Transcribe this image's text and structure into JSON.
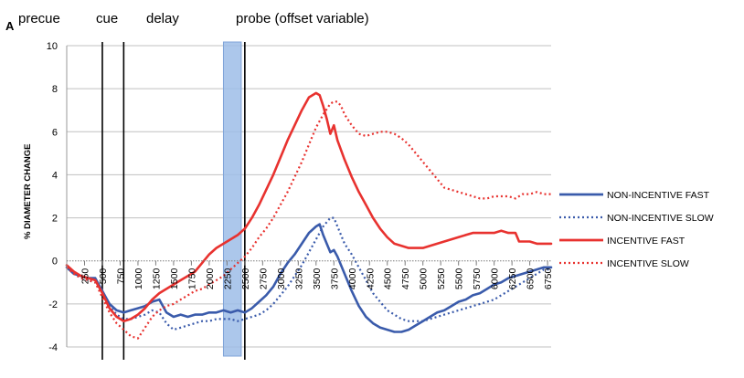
{
  "chart_data": {
    "type": "line",
    "panel_letter": "A",
    "phase_labels": [
      "precue",
      "cue",
      "delay",
      "probe (offset variable)"
    ],
    "ylabel": "% DIAMETER CHANGE",
    "xlabel": "",
    "ylim": [
      -4,
      10
    ],
    "y_ticks": [
      -4,
      -2,
      0,
      2,
      4,
      6,
      8,
      10
    ],
    "x_ticks": [
      250,
      500,
      750,
      1000,
      1250,
      1500,
      1750,
      2000,
      2250,
      2500,
      2750,
      3000,
      3250,
      3500,
      3750,
      4000,
      4250,
      4500,
      4750,
      5000,
      5250,
      5500,
      5750,
      6000,
      6250,
      6500,
      6750
    ],
    "xlim": [
      0,
      6800
    ],
    "grid": "horizontal",
    "legend_position": "right",
    "event_lines": [
      500,
      800,
      2500
    ],
    "probe_band": [
      2200,
      2450
    ],
    "colors": {
      "blue": "#3a5bab",
      "red": "#e8322f",
      "band": "#9dbde8",
      "grid": "#c0c0c0"
    },
    "series": [
      {
        "name": "NON-INCENTIVE FAST",
        "color": "#3a5bab",
        "style": "solid",
        "x": [
          0,
          100,
          200,
          300,
          400,
          500,
          600,
          700,
          800,
          900,
          1000,
          1100,
          1200,
          1300,
          1400,
          1500,
          1600,
          1700,
          1800,
          1900,
          2000,
          2100,
          2200,
          2300,
          2400,
          2500,
          2600,
          2700,
          2800,
          2900,
          3000,
          3100,
          3200,
          3300,
          3400,
          3500,
          3550,
          3600,
          3650,
          3700,
          3750,
          3800,
          3900,
          4000,
          4100,
          4200,
          4300,
          4400,
          4500,
          4600,
          4700,
          4800,
          4900,
          5000,
          5100,
          5200,
          5300,
          5400,
          5500,
          5600,
          5700,
          5800,
          5900,
          6000,
          6100,
          6200,
          6300,
          6400,
          6500,
          6600,
          6700,
          6800
        ],
        "y": [
          -0.3,
          -0.6,
          -0.7,
          -0.8,
          -0.8,
          -1.4,
          -2.0,
          -2.3,
          -2.4,
          -2.3,
          -2.2,
          -2.1,
          -1.9,
          -1.8,
          -2.4,
          -2.6,
          -2.5,
          -2.6,
          -2.5,
          -2.5,
          -2.4,
          -2.4,
          -2.3,
          -2.4,
          -2.3,
          -2.4,
          -2.2,
          -1.9,
          -1.6,
          -1.2,
          -0.6,
          -0.1,
          0.3,
          0.8,
          1.3,
          1.6,
          1.7,
          1.2,
          0.8,
          0.4,
          0.5,
          0.2,
          -0.6,
          -1.4,
          -2.1,
          -2.6,
          -2.9,
          -3.1,
          -3.2,
          -3.3,
          -3.3,
          -3.2,
          -3.0,
          -2.8,
          -2.6,
          -2.4,
          -2.3,
          -2.1,
          -1.9,
          -1.8,
          -1.6,
          -1.5,
          -1.3,
          -1.1,
          -1.0,
          -0.8,
          -0.7,
          -0.6,
          -0.5,
          -0.4,
          -0.3,
          -0.3
        ]
      },
      {
        "name": "NON-INCENTIVE SLOW",
        "color": "#3a5bab",
        "style": "dotted",
        "x": [
          0,
          100,
          200,
          300,
          400,
          500,
          600,
          700,
          800,
          900,
          1000,
          1100,
          1200,
          1300,
          1400,
          1500,
          1600,
          1700,
          1800,
          1900,
          2000,
          2100,
          2200,
          2300,
          2400,
          2500,
          2600,
          2700,
          2800,
          2900,
          3000,
          3100,
          3200,
          3300,
          3400,
          3500,
          3600,
          3700,
          3750,
          3800,
          3900,
          4000,
          4100,
          4200,
          4300,
          4400,
          4500,
          4600,
          4700,
          4800,
          4900,
          5000,
          5100,
          5200,
          5300,
          5400,
          5500,
          5600,
          5700,
          5800,
          5900,
          6000,
          6100,
          6200,
          6300,
          6400,
          6500,
          6600,
          6700,
          6800
        ],
        "y": [
          -0.3,
          -0.6,
          -0.8,
          -0.9,
          -1.0,
          -1.5,
          -2.1,
          -2.5,
          -2.7,
          -2.7,
          -2.6,
          -2.5,
          -2.3,
          -2.4,
          -2.9,
          -3.2,
          -3.1,
          -3.0,
          -2.9,
          -2.8,
          -2.8,
          -2.7,
          -2.7,
          -2.7,
          -2.8,
          -2.7,
          -2.6,
          -2.5,
          -2.3,
          -2.0,
          -1.6,
          -1.2,
          -0.7,
          -0.2,
          0.4,
          1.0,
          1.6,
          2.0,
          2.0,
          1.6,
          0.8,
          0.3,
          -0.3,
          -0.9,
          -1.5,
          -1.9,
          -2.3,
          -2.5,
          -2.7,
          -2.8,
          -2.8,
          -2.8,
          -2.7,
          -2.6,
          -2.5,
          -2.4,
          -2.3,
          -2.2,
          -2.1,
          -2.0,
          -1.9,
          -1.8,
          -1.6,
          -1.4,
          -1.2,
          -1.0,
          -0.8,
          -0.6,
          -0.4,
          -0.4
        ]
      },
      {
        "name": "INCENTIVE FAST",
        "color": "#e8322f",
        "style": "solid",
        "x": [
          0,
          100,
          200,
          300,
          400,
          500,
          600,
          700,
          800,
          900,
          1000,
          1100,
          1200,
          1300,
          1400,
          1500,
          1600,
          1700,
          1800,
          1900,
          2000,
          2100,
          2200,
          2300,
          2400,
          2500,
          2600,
          2700,
          2800,
          2900,
          3000,
          3100,
          3200,
          3300,
          3400,
          3500,
          3550,
          3600,
          3650,
          3700,
          3750,
          3800,
          3900,
          4000,
          4100,
          4200,
          4300,
          4400,
          4500,
          4600,
          4700,
          4800,
          4900,
          5000,
          5100,
          5200,
          5300,
          5400,
          5500,
          5600,
          5700,
          5800,
          5900,
          6000,
          6100,
          6200,
          6300,
          6350,
          6400,
          6500,
          6600,
          6700,
          6800
        ],
        "y": [
          -0.2,
          -0.5,
          -0.7,
          -0.8,
          -0.9,
          -1.5,
          -2.2,
          -2.6,
          -2.8,
          -2.7,
          -2.5,
          -2.2,
          -1.8,
          -1.5,
          -1.3,
          -1.1,
          -0.9,
          -0.7,
          -0.5,
          -0.1,
          0.3,
          0.6,
          0.8,
          1.0,
          1.2,
          1.5,
          2.0,
          2.6,
          3.3,
          4.0,
          4.8,
          5.6,
          6.3,
          7.0,
          7.6,
          7.8,
          7.7,
          7.2,
          6.6,
          5.9,
          6.3,
          5.6,
          4.7,
          3.9,
          3.2,
          2.6,
          2.0,
          1.5,
          1.1,
          0.8,
          0.7,
          0.6,
          0.6,
          0.6,
          0.7,
          0.8,
          0.9,
          1.0,
          1.1,
          1.2,
          1.3,
          1.3,
          1.3,
          1.3,
          1.4,
          1.3,
          1.3,
          0.9,
          0.9,
          0.9,
          0.8,
          0.8,
          0.8
        ]
      },
      {
        "name": "INCENTIVE SLOW",
        "color": "#e8322f",
        "style": "dotted",
        "x": [
          0,
          100,
          200,
          300,
          400,
          500,
          600,
          700,
          800,
          900,
          1000,
          1100,
          1200,
          1300,
          1400,
          1500,
          1600,
          1700,
          1800,
          1900,
          2000,
          2100,
          2200,
          2300,
          2400,
          2500,
          2600,
          2700,
          2800,
          2900,
          3000,
          3100,
          3200,
          3300,
          3400,
          3500,
          3600,
          3700,
          3750,
          3800,
          3850,
          3900,
          4000,
          4100,
          4200,
          4300,
          4400,
          4500,
          4600,
          4700,
          4800,
          4900,
          5000,
          5100,
          5200,
          5300,
          5400,
          5500,
          5600,
          5700,
          5800,
          5900,
          6000,
          6100,
          6200,
          6300,
          6400,
          6500,
          6600,
          6700,
          6800
        ],
        "y": [
          -0.3,
          -0.6,
          -0.8,
          -0.9,
          -1.0,
          -1.7,
          -2.4,
          -2.9,
          -3.2,
          -3.5,
          -3.6,
          -3.1,
          -2.6,
          -2.3,
          -2.1,
          -2.0,
          -1.8,
          -1.6,
          -1.4,
          -1.3,
          -1.1,
          -0.9,
          -0.7,
          -0.4,
          -0.1,
          0.2,
          0.6,
          1.1,
          1.5,
          2.0,
          2.6,
          3.2,
          3.9,
          4.6,
          5.4,
          6.2,
          6.8,
          7.3,
          7.4,
          7.4,
          7.2,
          6.8,
          6.3,
          5.9,
          5.8,
          5.9,
          6.0,
          6.0,
          5.9,
          5.7,
          5.4,
          5.0,
          4.6,
          4.2,
          3.8,
          3.4,
          3.3,
          3.2,
          3.1,
          3.0,
          2.9,
          2.9,
          3.0,
          3.0,
          3.0,
          2.9,
          3.1,
          3.1,
          3.2,
          3.1,
          3.1
        ]
      }
    ]
  }
}
